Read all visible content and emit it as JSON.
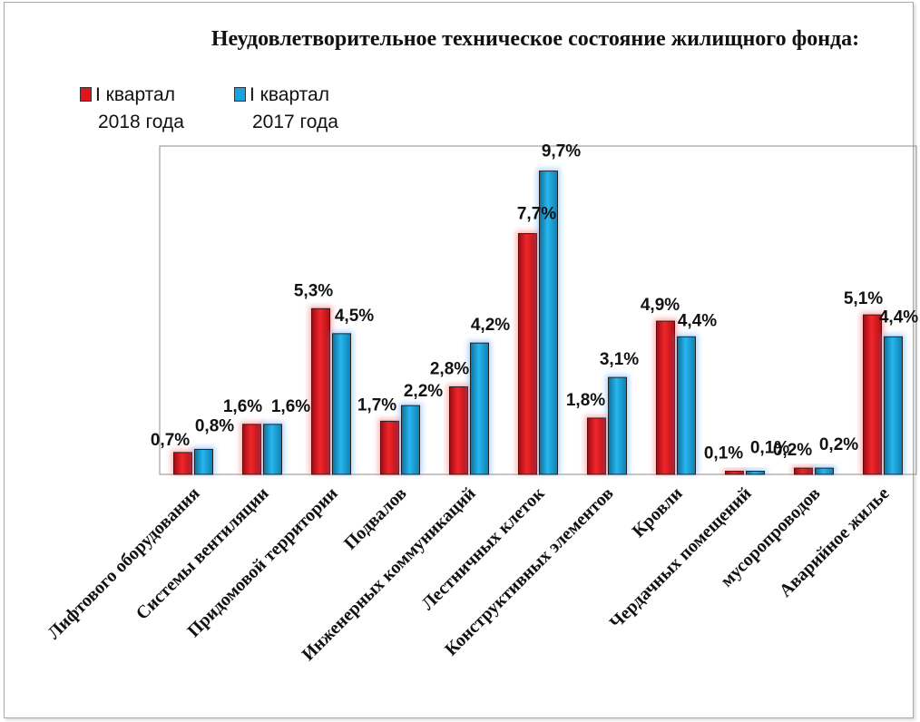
{
  "chart_data": {
    "type": "bar",
    "title": "Неудовлетворительное техническое состояние жилищного фонда:",
    "categories": [
      "Лифтового оборудования",
      "Системы вентиляции",
      "Придомовой территории",
      "Подвалов",
      "Инженерных коммуникаций",
      "Лестничных клеток",
      "Конструктивных  элементов",
      "Кровли",
      "Чердачных помещений",
      "мусоропроводов",
      "Аварийное жилье"
    ],
    "series": [
      {
        "name": "I квартал 2018 года",
        "legend_line1": "I квартал",
        "legend_line2": "2018 года",
        "color": "#e0151b",
        "values": [
          0.7,
          1.6,
          5.3,
          1.7,
          2.8,
          7.7,
          1.8,
          4.9,
          0.1,
          0.2,
          5.1
        ],
        "labels": [
          "0,7%",
          "1,6%",
          "5,3%",
          "1,7%",
          "2,8%",
          "7,7%",
          "1,8%",
          "4,9%",
          "0,1%",
          "0,2%",
          "5,1%"
        ]
      },
      {
        "name": "I квартал 2017 года",
        "legend_line1": "I квартал",
        "legend_line2": "2017 года",
        "color": "#1aa3dc",
        "values": [
          0.8,
          1.6,
          4.5,
          2.2,
          4.2,
          9.7,
          3.1,
          4.4,
          0.1,
          0.2,
          4.4
        ],
        "labels": [
          "0,8%",
          "1,6%",
          "4,5%",
          "2,2%",
          "4,2%",
          "9,7%",
          "3,1%",
          "4,4%",
          "0,1%",
          "0,2%",
          "4,4%"
        ]
      }
    ],
    "ylim": [
      0,
      10.5
    ],
    "grid": false,
    "legend_position": "top-left"
  }
}
